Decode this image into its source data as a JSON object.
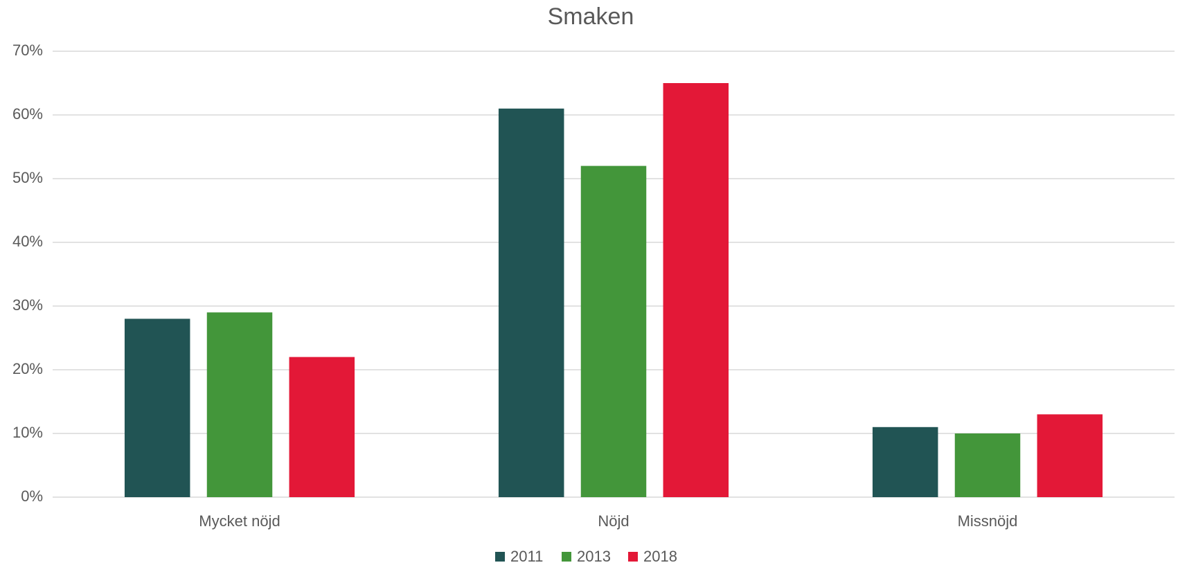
{
  "chart_data": {
    "type": "bar",
    "title": "Smaken",
    "categories": [
      "Mycket nöjd",
      "Nöjd",
      "Missnöjd"
    ],
    "series": [
      {
        "name": "2011",
        "color": "#215454",
        "values": [
          28,
          61,
          11
        ]
      },
      {
        "name": "2013",
        "color": "#43963a",
        "values": [
          29,
          52,
          10
        ]
      },
      {
        "name": "2018",
        "color": "#e31837",
        "values": [
          22,
          65,
          13
        ]
      }
    ],
    "ylim": [
      0,
      70
    ],
    "yticks": [
      {
        "value": 0,
        "label": "0%"
      },
      {
        "value": 10,
        "label": "10%"
      },
      {
        "value": 20,
        "label": "20%"
      },
      {
        "value": 30,
        "label": "30%"
      },
      {
        "value": 40,
        "label": "40%"
      },
      {
        "value": 50,
        "label": "50%"
      },
      {
        "value": 60,
        "label": "60%"
      },
      {
        "value": 70,
        "label": "70%"
      }
    ],
    "grid": true,
    "legend": "bottom"
  }
}
